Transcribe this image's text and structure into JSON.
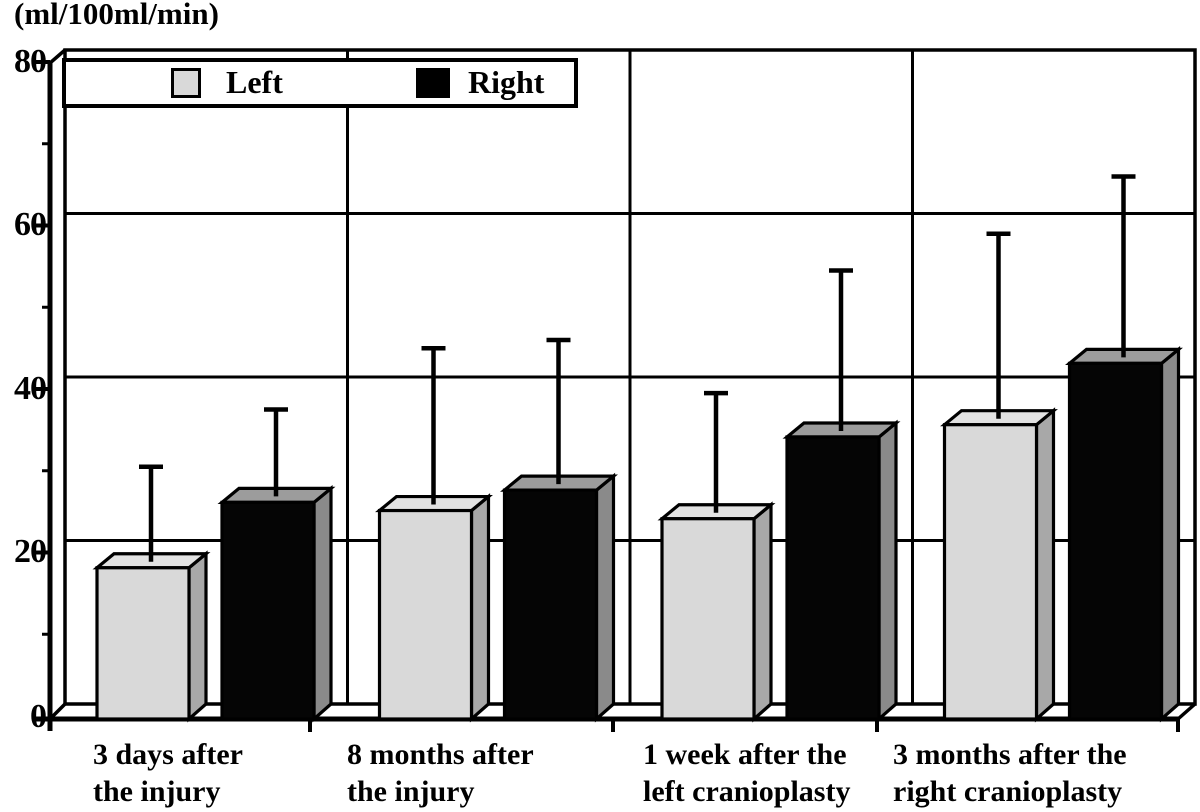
{
  "page": {
    "unit_label": "(ml/100ml/min)"
  },
  "chart_data": {
    "type": "bar",
    "title": "",
    "ylabel": "(ml/100ml/min)",
    "xlabel": "",
    "categories": [
      "3 days after the injury",
      "8 months after the injury",
      "1 week after the left cranioplasty",
      "3 months after the right cranioplasty"
    ],
    "categories_lines": [
      [
        "3 days after",
        "the injury"
      ],
      [
        "8 months after",
        "the injury"
      ],
      [
        "1 week after the",
        "left cranioplasty"
      ],
      [
        "3 months after the",
        "right cranioplasty"
      ]
    ],
    "series": [
      {
        "name": "Left",
        "color": "#d9d9d9",
        "values": [
          18.5,
          25.5,
          24.5,
          36.0
        ],
        "sd_upper": [
          11.5,
          19.0,
          14.5,
          22.5
        ]
      },
      {
        "name": "Right",
        "color": "#050505",
        "values": [
          26.5,
          28.0,
          34.5,
          43.5
        ],
        "sd_upper": [
          10.5,
          17.5,
          19.5,
          22.0
        ]
      }
    ],
    "ylim": [
      0,
      80
    ],
    "yticks": [
      0,
      20,
      40,
      60,
      80
    ],
    "ytick_labels": [
      "0",
      "20",
      "40",
      "60",
      "80"
    ],
    "minor_yticks": [
      10,
      30,
      50,
      70
    ],
    "grid": true,
    "legend_position": "top-left-inside",
    "bar_style": "3d-column",
    "error_bars": "upper-only",
    "colors": {
      "left_bar": "#d9d9d9",
      "left_bar_top": "#e2e2e2",
      "left_bar_side": "#a8a8a8",
      "right_bar": "#050505",
      "right_bar_top": "#9c9c9c",
      "right_bar_side": "#8a8a8a",
      "line": "#000000",
      "background": "#ffffff"
    }
  }
}
